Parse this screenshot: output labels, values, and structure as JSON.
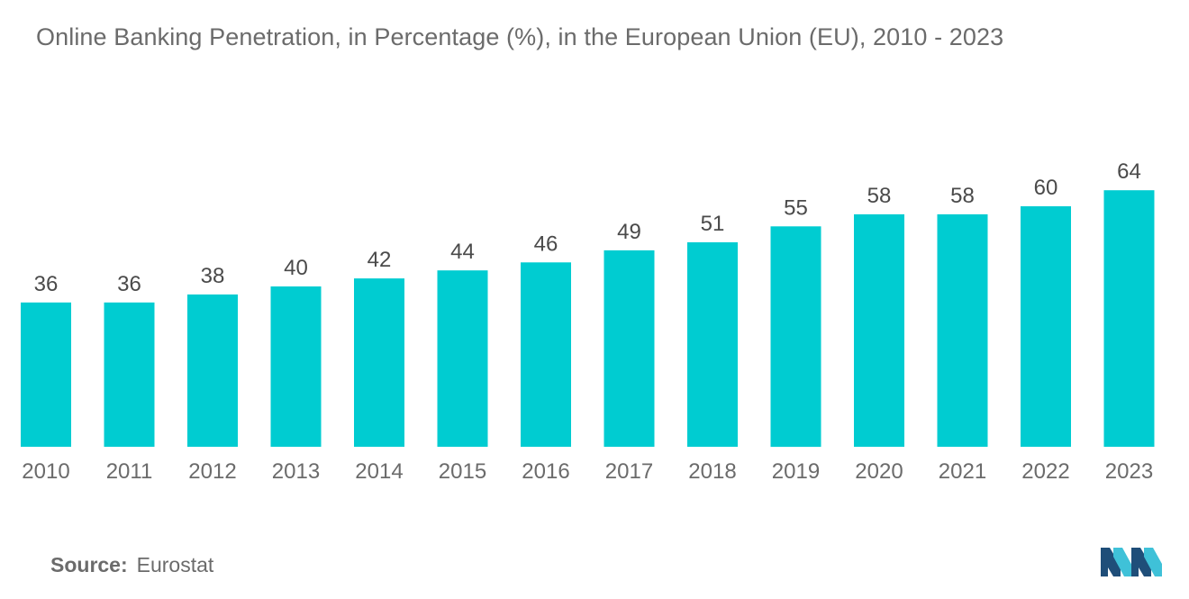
{
  "title": "Online Banking Penetration, in Percentage (%), in the European Union (EU), 2010 - 2023",
  "source": {
    "label": "Source:",
    "value": "Eurostat"
  },
  "colors": {
    "bar": "#00ccd1",
    "text": "#6b6b6b",
    "value_label": "#4a4a4a",
    "logo_dark": "#1f4e79",
    "logo_light": "#3fc1d8"
  },
  "chart_data": {
    "type": "bar",
    "title": "Online Banking Penetration, in Percentage (%), in the European Union (EU), 2010 - 2023",
    "categories": [
      "2010",
      "2011",
      "2012",
      "2013",
      "2014",
      "2015",
      "2016",
      "2017",
      "2018",
      "2019",
      "2020",
      "2021",
      "2022",
      "2023"
    ],
    "values": [
      36,
      36,
      38,
      40,
      42,
      44,
      46,
      49,
      51,
      55,
      58,
      58,
      60,
      64
    ],
    "xlabel": "",
    "ylabel": "",
    "ylim": [
      0,
      64
    ],
    "grid": false,
    "data_labels": true
  }
}
